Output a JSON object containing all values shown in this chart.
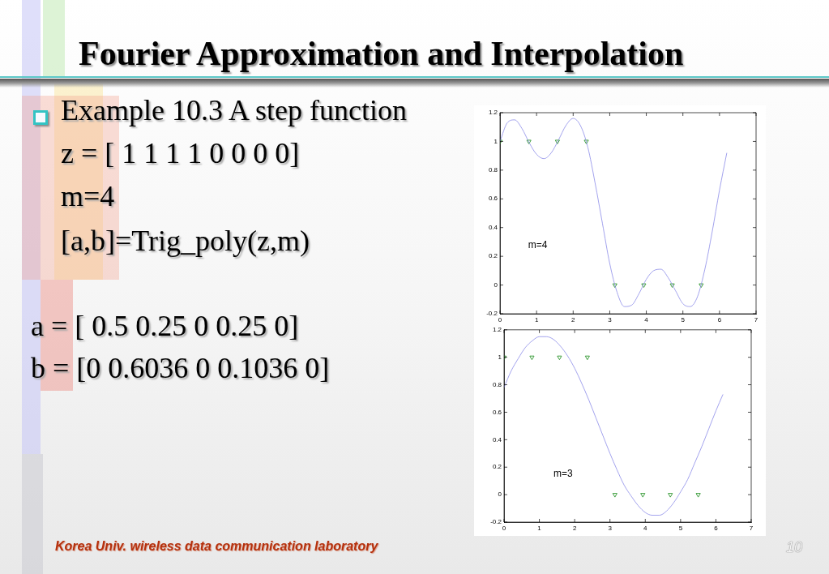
{
  "chart_data": [
    {
      "type": "other",
      "title": "Fourier Approximation and Interpolation",
      "annotations": [
        "Example 10.3 A step function",
        "z = [ 1 1 1 1 0 0 0 0]",
        "m=4",
        "[a,b]=Trig_poly(z,m)",
        "a = [ 0.5 0.25 0 0.25 0]",
        "b = [0 0.6036 0 0.1036 0]",
        "Korea Univ. wireless data communication laboratory",
        "10"
      ]
    },
    {
      "type": "line",
      "x": [
        0,
        0.2,
        0.4,
        0.6,
        0.8,
        1,
        1.2,
        1.4,
        1.6,
        1.8,
        2,
        2.2,
        2.4,
        2.6,
        2.8,
        3,
        3.2,
        3.4,
        3.6,
        3.8,
        4,
        4.2,
        4.4,
        4.6,
        4.8,
        5,
        5.2,
        5.4,
        5.6,
        5.8,
        6,
        6.2
      ],
      "series": [
        {
          "type": "line",
          "color": "#8c8ce8",
          "values": [
            1,
            1.13,
            1.15,
            1.09,
            0.99,
            0.91,
            0.88,
            0.92,
            1.01,
            1.11,
            1.16,
            1.11,
            0.96,
            0.71,
            0.43,
            0.15,
            -0.05,
            -0.15,
            -0.14,
            -0.06,
            0.04,
            0.1,
            0.11,
            0.05,
            -0.04,
            -0.13,
            -0.15,
            -0.08,
            0.11,
            0.37,
            0.66,
            0.92
          ]
        },
        {
          "type": "scatter",
          "color": "#3f9f3f",
          "marker": "triangle",
          "x": [
            0,
            0.79,
            1.57,
            2.36,
            3.14,
            3.93,
            4.71,
            5.5
          ],
          "values": [
            1,
            1,
            1,
            1,
            0,
            0,
            0,
            0
          ]
        }
      ],
      "xlim": [
        0,
        7
      ],
      "xticks": [
        0,
        1,
        2,
        3,
        4,
        5,
        6,
        7
      ],
      "ylim": [
        -0.2,
        1.2
      ],
      "yticks": [
        -0.2,
        0,
        0.2,
        0.4,
        0.6,
        0.8,
        1,
        1.2
      ],
      "grid": false,
      "legend": false,
      "annotations": [
        "m=4"
      ]
    },
    {
      "type": "line",
      "x": [
        0,
        0.2,
        0.4,
        0.6,
        0.8,
        1,
        1.2,
        1.4,
        1.6,
        1.8,
        2,
        2.2,
        2.4,
        2.6,
        2.8,
        3,
        3.2,
        3.4,
        3.6,
        3.8,
        4,
        4.2,
        4.4,
        4.6,
        4.8,
        5,
        5.2,
        5.4,
        5.6,
        5.8,
        6,
        6.2
      ],
      "series": [
        {
          "type": "line",
          "color": "#8c8ce8",
          "values": [
            0.78,
            0.9,
            0.99,
            1.07,
            1.12,
            1.15,
            1.15,
            1.13,
            1.08,
            1.01,
            0.92,
            0.81,
            0.69,
            0.56,
            0.43,
            0.3,
            0.18,
            0.07,
            -0.01,
            -0.08,
            -0.13,
            -0.15,
            -0.15,
            -0.12,
            -0.06,
            0.02,
            0.11,
            0.23,
            0.35,
            0.48,
            0.61,
            0.73
          ]
        },
        {
          "type": "scatter",
          "color": "#3f9f3f",
          "marker": "triangle",
          "x": [
            0,
            0.79,
            1.57,
            2.36,
            3.14,
            3.93,
            4.71,
            5.5
          ],
          "values": [
            1,
            1,
            1,
            1,
            0,
            0,
            0,
            0
          ]
        }
      ],
      "xlim": [
        0,
        7
      ],
      "xticks": [
        0,
        1,
        2,
        3,
        4,
        5,
        6,
        7
      ],
      "ylim": [
        -0.2,
        1.2
      ],
      "yticks": [
        -0.2,
        0,
        0.2,
        0.4,
        0.6,
        0.8,
        1,
        1.2
      ],
      "grid": false,
      "legend": false,
      "annotations": [
        "m=3"
      ]
    }
  ]
}
